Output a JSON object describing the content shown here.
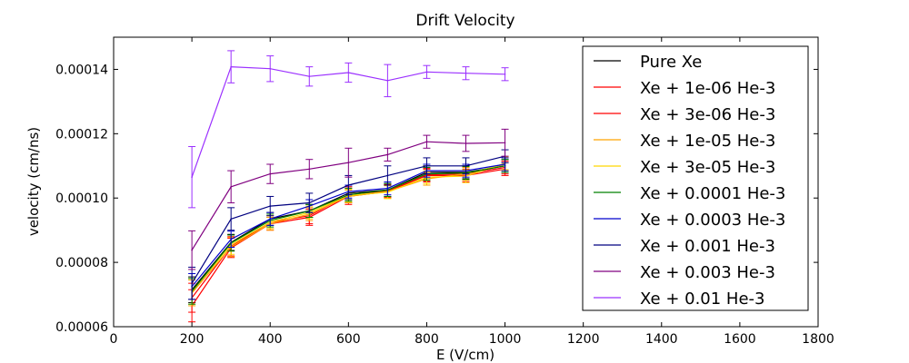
{
  "chart_data": {
    "type": "line",
    "title": "Drift Velocity",
    "xlabel": "E (V/cm)",
    "ylabel": "velocity (cm/ns)",
    "xlim": [
      0,
      1800
    ],
    "ylim": [
      6e-05,
      0.00015
    ],
    "xticks": [
      0,
      200,
      400,
      600,
      800,
      1000,
      1200,
      1400,
      1600,
      1800
    ],
    "xtick_labels": [
      "0",
      "200",
      "400",
      "600",
      "800",
      "1000",
      "1200",
      "1400",
      "1600",
      "1800"
    ],
    "yticks": [
      6e-05,
      8e-05,
      0.0001,
      0.00012,
      0.00014
    ],
    "ytick_labels": [
      "0.00006",
      "0.00008",
      "0.00010",
      "0.00012",
      "0.00014"
    ],
    "grid": false,
    "legend_position": "upper-right",
    "x": [
      200,
      300,
      400,
      500,
      600,
      700,
      800,
      900,
      1000
    ],
    "series": [
      {
        "name": "Pure Xe",
        "color": "#000000",
        "values": [
          7.15e-05,
          8.62e-05,
          9.35e-05,
          9.6e-05,
          0.0001015,
          0.0001025,
          0.000108,
          0.000108,
          0.00011
        ],
        "errors": [
          4e-06,
          2.5e-06,
          2e-06,
          2e-06,
          2e-06,
          2e-06,
          2e-06,
          2e-06,
          2e-06
        ]
      },
      {
        "name": "Xe + 1e-06 He-3",
        "color": "#ff0000",
        "values": [
          6.65e-05,
          8.45e-05,
          9.2e-05,
          9.4e-05,
          0.0001005,
          0.000102,
          0.000107,
          0.000107,
          0.000109
        ],
        "errors": [
          5e-06,
          3e-06,
          2e-06,
          2.5e-06,
          2.5e-06,
          2e-06,
          2e-06,
          2e-06,
          2e-06
        ]
      },
      {
        "name": "Xe + 3e-06 He-3",
        "color": "#ff0000",
        "values": [
          6.9e-05,
          8.5e-05,
          9.25e-05,
          9.45e-05,
          0.000101,
          0.0001022,
          0.0001072,
          0.0001075,
          0.0001095
        ],
        "errors": [
          4.5e-06,
          3e-06,
          2e-06,
          2.5e-06,
          2.5e-06,
          2e-06,
          2e-06,
          2e-06,
          2e-06
        ]
      },
      {
        "name": "Xe + 1e-05 He-3",
        "color": "#ffa500",
        "values": [
          7.05e-05,
          8.48e-05,
          9.2e-05,
          9.5e-05,
          0.0001005,
          0.000102,
          0.000106,
          0.0001075,
          0.0001105
        ],
        "errors": [
          4e-06,
          3e-06,
          2e-06,
          2e-06,
          2e-06,
          2e-06,
          2e-06,
          2e-06,
          2e-06
        ]
      },
      {
        "name": "Xe + 3e-05 He-3",
        "color": "#ffd700",
        "values": [
          7.1e-05,
          8.55e-05,
          9.25e-05,
          9.55e-05,
          0.0001008,
          0.0001018,
          0.0001065,
          0.0001068,
          0.0001108
        ],
        "errors": [
          4e-06,
          3e-06,
          2e-06,
          2e-06,
          2e-06,
          2e-06,
          2e-06,
          2e-06,
          2e-06
        ]
      },
      {
        "name": "Xe + 0.0001 He-3",
        "color": "#008000",
        "values": [
          7.1e-05,
          8.6e-05,
          9.3e-05,
          9.6e-05,
          0.000101,
          0.0001025,
          0.0001075,
          0.0001078,
          0.00011
        ],
        "errors": [
          4e-06,
          2.5e-06,
          2e-06,
          2e-06,
          2e-06,
          2e-06,
          2e-06,
          2e-06,
          2e-06
        ]
      },
      {
        "name": "Xe + 0.0003 He-3",
        "color": "#0000cc",
        "values": [
          7.25e-05,
          8.72e-05,
          9.35e-05,
          9.75e-05,
          0.000102,
          0.000103,
          0.0001085,
          0.0001085,
          0.0001105
        ],
        "errors": [
          4e-06,
          2.5e-06,
          2e-06,
          2e-06,
          2e-06,
          2e-06,
          2e-06,
          2e-06,
          2e-06
        ]
      },
      {
        "name": "Xe + 0.001 He-3",
        "color": "#000080",
        "values": [
          7.35e-05,
          9.35e-05,
          9.75e-05,
          9.85e-05,
          0.000104,
          0.000107,
          0.00011,
          0.00011,
          0.000113
        ],
        "errors": [
          5e-06,
          3.5e-06,
          3e-06,
          3e-06,
          3e-06,
          3e-06,
          2.5e-06,
          2.5e-06,
          2e-06
        ]
      },
      {
        "name": "Xe + 0.003 He-3",
        "color": "#800080",
        "values": [
          8.38e-05,
          0.0001035,
          0.0001075,
          0.000109,
          0.000111,
          0.0001135,
          0.0001175,
          0.000117,
          0.0001172
        ],
        "errors": [
          6e-06,
          5e-06,
          3e-06,
          3e-06,
          4.5e-06,
          2e-06,
          2e-06,
          2.5e-06,
          4.2e-06
        ]
      },
      {
        "name": "Xe + 0.01 He-3",
        "color": "#9b30ff",
        "values": [
          0.0001065,
          0.0001408,
          0.0001402,
          0.0001378,
          0.000139,
          0.0001365,
          0.0001392,
          0.0001388,
          0.0001385
        ],
        "errors": [
          9.5e-06,
          5e-06,
          4e-06,
          3e-06,
          3e-06,
          5e-06,
          2e-06,
          2e-06,
          2e-06
        ]
      }
    ]
  }
}
